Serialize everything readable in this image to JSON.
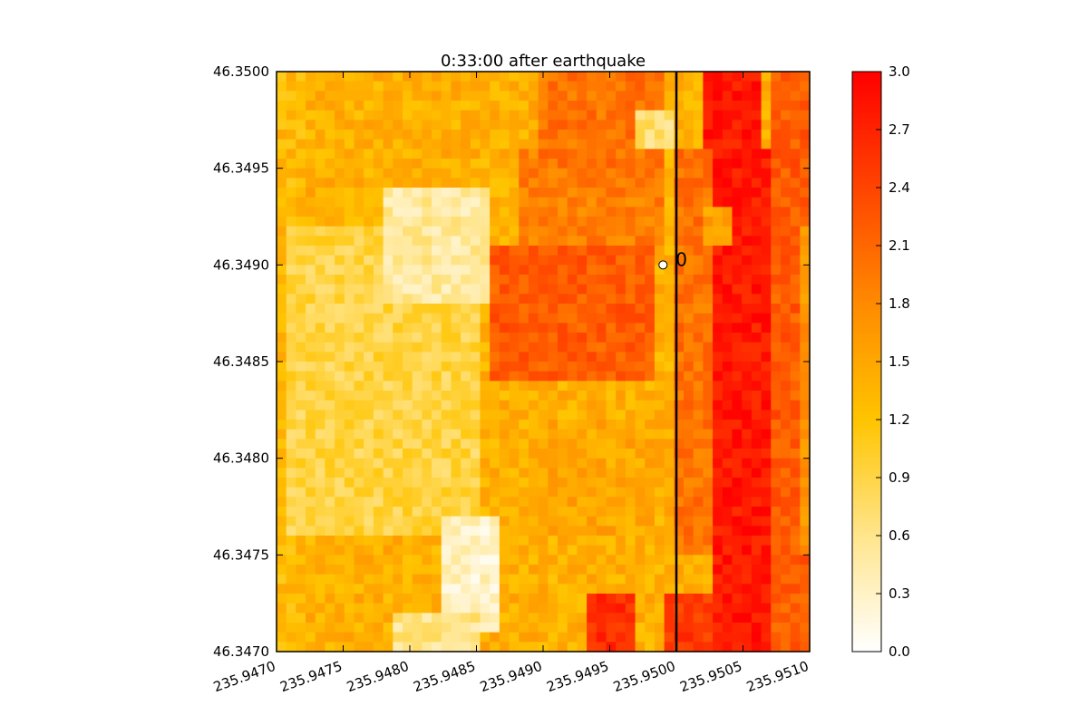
{
  "chart_data": {
    "type": "heatmap",
    "title": "0:33:00 after earthquake",
    "xlabel": "",
    "ylabel": "",
    "xlim": [
      235.947,
      235.951
    ],
    "ylim": [
      46.347,
      46.35
    ],
    "x_ticks": [
      "235.9470",
      "235.9475",
      "235.9480",
      "235.9485",
      "235.9490",
      "235.9495",
      "235.9500",
      "235.9505",
      "235.9510"
    ],
    "x_tick_values": [
      235.947,
      235.9475,
      235.948,
      235.9485,
      235.949,
      235.9495,
      235.95,
      235.9505,
      235.951
    ],
    "y_ticks": [
      "46.3500",
      "46.3495",
      "46.3490",
      "46.3485",
      "46.3480",
      "46.3475",
      "46.3470"
    ],
    "y_tick_values": [
      46.35,
      46.3495,
      46.349,
      46.3485,
      46.348,
      46.3475,
      46.347
    ],
    "colorbar": {
      "range": [
        0,
        3
      ],
      "ticks": [
        "3.0",
        "2.7",
        "2.4",
        "2.1",
        "1.8",
        "1.5",
        "1.2",
        "0.9",
        "0.6",
        "0.3",
        "0.0"
      ],
      "tick_values": [
        3.0,
        2.7,
        2.4,
        2.1,
        1.8,
        1.5,
        1.2,
        0.9,
        0.6,
        0.3,
        0.0
      ],
      "colormap_stops": [
        "#ffffff",
        "#ffe58c",
        "#ffc400",
        "#ff8a00",
        "#ff4400",
        "#ff0000"
      ]
    },
    "grid": false,
    "transect_line": {
      "x": 235.95
    },
    "marker": {
      "x": 235.9499,
      "y": 46.349,
      "label": "0"
    },
    "rows": 60,
    "cols": 55,
    "regions": [
      {
        "x": [
          235.947,
          235.9472
        ],
        "y": [
          46.347,
          46.35
        ],
        "value": 1.3
      },
      {
        "x": [
          235.9471,
          235.9485
        ],
        "y": [
          46.3476,
          46.3492
        ],
        "value": 0.9
      },
      {
        "x": [
          235.9478,
          235.9486
        ],
        "y": [
          46.3488,
          46.3494
        ],
        "value": 0.5
      },
      {
        "x": [
          235.9482,
          235.9487
        ],
        "y": [
          46.3471,
          46.3477
        ],
        "value": 0.3
      },
      {
        "x": [
          235.9479,
          235.9485
        ],
        "y": [
          46.347,
          46.3472
        ],
        "value": 0.6
      },
      {
        "x": [
          235.9486,
          235.9498
        ],
        "y": [
          46.3484,
          46.3491
        ],
        "value": 2.2
      },
      {
        "x": [
          235.9488,
          235.9499
        ],
        "y": [
          46.3491,
          46.3496
        ],
        "value": 1.9
      },
      {
        "x": [
          235.949,
          235.9499
        ],
        "y": [
          46.3495,
          46.35
        ],
        "value": 2.0
      },
      {
        "x": [
          235.949,
          235.9498
        ],
        "y": [
          46.3476,
          46.3482
        ],
        "value": 1.5
      },
      {
        "x": [
          235.9493,
          235.9497
        ],
        "y": [
          46.347,
          46.3473
        ],
        "value": 2.6
      },
      {
        "x": [
          235.9499,
          235.9503
        ],
        "y": [
          46.347,
          46.3473
        ],
        "value": 2.5
      },
      {
        "x": [
          235.9497,
          235.95
        ],
        "y": [
          46.3496,
          46.3498
        ],
        "value": 0.7
      },
      {
        "x": [
          235.9502,
          235.9506
        ],
        "y": [
          46.3496,
          46.35
        ],
        "value": 2.8
      },
      {
        "x": [
          235.9503,
          235.9507
        ],
        "y": [
          46.347,
          46.3496
        ],
        "value": 2.8
      },
      {
        "x": [
          235.95,
          235.9503
        ],
        "y": [
          46.3475,
          46.3496
        ],
        "value": 2.0
      },
      {
        "x": [
          235.9507,
          235.951
        ],
        "y": [
          46.347,
          46.35
        ],
        "value": 2.2
      },
      {
        "x": [
          235.9509,
          235.951
        ],
        "y": [
          46.3475,
          46.3492
        ],
        "value": 1.7
      },
      {
        "x": [
          235.9502,
          235.9504
        ],
        "y": [
          46.3491,
          46.3493
        ],
        "value": 1.6
      }
    ]
  }
}
